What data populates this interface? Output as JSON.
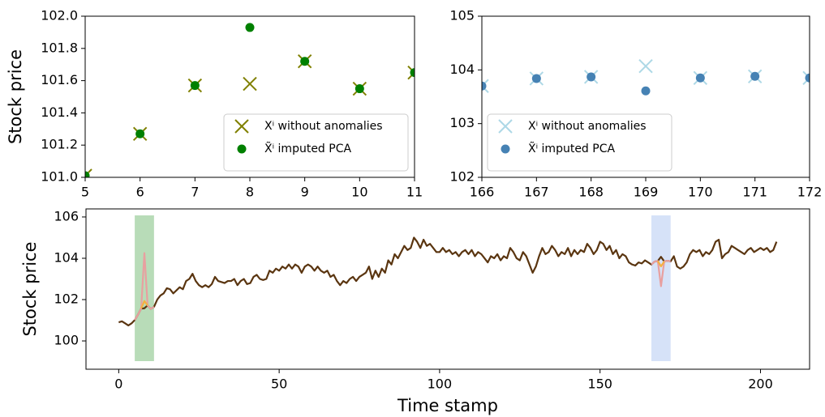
{
  "chart_data": [
    {
      "type": "scatter",
      "ylabel": "Stock price",
      "xlim": [
        5,
        11
      ],
      "ylim": [
        101.0,
        102.0
      ],
      "xticks": [
        5,
        6,
        7,
        8,
        9,
        10,
        11
      ],
      "yticks": [
        {
          "value": 101.0,
          "label": "101.0"
        },
        101.2,
        101.4,
        101.6,
        101.8,
        {
          "value": 102.0,
          "label": "102.0"
        }
      ],
      "legend": "lower right",
      "series": [
        {
          "name": "Xⁱ without anomalies",
          "marker": "x",
          "color": "#808000",
          "x": [
            5,
            6,
            7,
            8,
            9,
            10,
            11
          ],
          "values": [
            101.01,
            101.27,
            101.57,
            101.58,
            101.72,
            101.55,
            101.65
          ]
        },
        {
          "name": "X̃ⁱ imputed PCA",
          "marker": "o",
          "color": "#008000",
          "x": [
            5,
            6,
            7,
            8,
            9,
            10,
            11
          ],
          "values": [
            101.01,
            101.27,
            101.57,
            101.93,
            101.72,
            101.55,
            101.65
          ]
        }
      ]
    },
    {
      "type": "scatter",
      "xlim": [
        166,
        172
      ],
      "ylim": [
        102,
        105
      ],
      "xticks": [
        166,
        167,
        168,
        169,
        170,
        171,
        172
      ],
      "yticks": [
        102,
        103,
        104,
        105
      ],
      "legend": "lower left",
      "series": [
        {
          "name": "Xⁱ without anomalies",
          "marker": "x",
          "color": "#add8e6",
          "x": [
            166,
            167,
            168,
            169,
            170,
            171,
            172
          ],
          "values": [
            103.7,
            103.84,
            103.87,
            104.07,
            103.85,
            103.88,
            103.85
          ]
        },
        {
          "name": "X̃ⁱ imputed PCA",
          "marker": "o",
          "color": "#4682b4",
          "x": [
            166,
            167,
            168,
            169,
            170,
            171,
            172
          ],
          "values": [
            103.7,
            103.84,
            103.87,
            103.61,
            103.85,
            103.88,
            103.85
          ]
        }
      ]
    },
    {
      "type": "line",
      "xlabel": "Time stamp",
      "ylabel": "Stock price",
      "xlim": [
        -10.2,
        215.3
      ],
      "ylim": [
        98.63,
        106.39
      ],
      "xticks": [
        0,
        50,
        100,
        150,
        200
      ],
      "yticks": [
        100,
        102,
        104,
        106
      ],
      "shaded_ranges": [
        {
          "xlim": [
            5,
            11
          ],
          "color": "#b8dcb8"
        },
        {
          "xlim": [
            166,
            172
          ],
          "color": "#d6e2f8"
        }
      ],
      "series": [
        {
          "color": "#5a3510",
          "x": [
            0,
            1,
            2,
            3,
            4,
            5,
            6,
            7,
            8,
            9,
            10,
            11,
            12,
            13,
            14,
            15,
            16,
            17,
            18,
            19,
            20,
            21,
            22,
            23,
            24,
            25,
            26,
            27,
            28,
            29,
            30,
            31,
            32,
            33,
            34,
            35,
            36,
            37,
            38,
            39,
            40,
            41,
            42,
            43,
            44,
            45,
            46,
            47,
            48,
            49,
            50,
            51,
            52,
            53,
            54,
            55,
            56,
            57,
            58,
            59,
            60,
            61,
            62,
            63,
            64,
            65,
            66,
            67,
            68,
            69,
            70,
            71,
            72,
            73,
            74,
            75,
            76,
            77,
            78,
            79,
            80,
            81,
            82,
            83,
            84,
            85,
            86,
            87,
            88,
            89,
            90,
            91,
            92,
            93,
            94,
            95,
            96,
            97,
            98,
            99,
            100,
            101,
            102,
            103,
            104,
            105,
            106,
            107,
            108,
            109,
            110,
            111,
            112,
            113,
            114,
            115,
            116,
            117,
            118,
            119,
            120,
            121,
            122,
            123,
            124,
            125,
            126,
            127,
            128,
            129,
            130,
            131,
            132,
            133,
            134,
            135,
            136,
            137,
            138,
            139,
            140,
            141,
            142,
            143,
            144,
            145,
            146,
            147,
            148,
            149,
            150,
            151,
            152,
            153,
            154,
            155,
            156,
            157,
            158,
            159,
            160,
            161,
            162,
            163,
            164,
            165,
            166,
            167,
            168,
            169,
            170,
            171,
            172,
            173,
            174,
            175,
            176,
            177,
            178,
            179,
            180,
            181,
            182,
            183,
            184,
            185,
            186,
            187,
            188,
            189,
            190,
            191,
            192,
            193,
            194,
            195,
            196,
            197,
            198,
            199,
            200,
            201,
            202,
            203,
            204,
            205
          ],
          "values": [
            100.9,
            100.95,
            100.85,
            100.75,
            100.85,
            101.01,
            101.27,
            101.57,
            101.58,
            101.72,
            101.55,
            101.65,
            102.0,
            102.2,
            102.3,
            102.55,
            102.5,
            102.3,
            102.45,
            102.6,
            102.5,
            102.9,
            103.0,
            103.25,
            102.9,
            102.7,
            102.6,
            102.7,
            102.6,
            102.75,
            103.1,
            102.9,
            102.85,
            102.8,
            102.9,
            102.9,
            103.0,
            102.7,
            102.9,
            103.0,
            102.75,
            102.8,
            103.1,
            103.2,
            103.0,
            102.95,
            103.0,
            103.4,
            103.3,
            103.5,
            103.4,
            103.6,
            103.5,
            103.7,
            103.5,
            103.7,
            103.6,
            103.3,
            103.6,
            103.7,
            103.6,
            103.4,
            103.6,
            103.4,
            103.3,
            103.4,
            103.1,
            103.2,
            102.9,
            102.7,
            102.9,
            102.8,
            103.0,
            103.1,
            102.9,
            103.1,
            103.2,
            103.3,
            103.6,
            103.0,
            103.4,
            103.1,
            103.5,
            103.3,
            103.9,
            103.7,
            104.2,
            104.0,
            104.3,
            104.6,
            104.4,
            104.5,
            105.0,
            104.8,
            104.5,
            104.9,
            104.6,
            104.7,
            104.5,
            104.3,
            104.3,
            104.5,
            104.3,
            104.4,
            104.2,
            104.3,
            104.1,
            104.3,
            104.4,
            104.2,
            104.4,
            104.1,
            104.3,
            104.2,
            104.0,
            103.8,
            104.1,
            104.0,
            104.2,
            103.9,
            104.1,
            104.0,
            104.5,
            104.3,
            104.0,
            103.9,
            104.3,
            104.1,
            103.7,
            103.3,
            103.6,
            104.1,
            104.5,
            104.2,
            104.3,
            104.6,
            104.4,
            104.1,
            104.3,
            104.2,
            104.5,
            104.1,
            104.4,
            104.2,
            104.4,
            104.3,
            104.7,
            104.5,
            104.2,
            104.4,
            104.8,
            104.7,
            104.4,
            104.6,
            104.2,
            104.4,
            104.0,
            104.2,
            104.1,
            103.8,
            103.7,
            103.65,
            103.8,
            103.75,
            103.9,
            103.8,
            103.7,
            103.84,
            103.87,
            104.07,
            103.85,
            103.88,
            103.85,
            104.1,
            103.6,
            103.5,
            103.6,
            103.8,
            104.2,
            104.4,
            104.3,
            104.4,
            104.1,
            104.3,
            104.2,
            104.4,
            104.8,
            104.9,
            104.0,
            104.2,
            104.3,
            104.6,
            104.5,
            104.4,
            104.3,
            104.2,
            104.4,
            104.5,
            104.3,
            104.4,
            104.5,
            104.4,
            104.5,
            104.3,
            104.4,
            104.8
          ]
        },
        {
          "color": "#e8a0a0",
          "x": [
            5,
            6,
            7,
            8,
            9,
            10,
            11
          ],
          "values": [
            101.01,
            101.27,
            101.57,
            104.25,
            101.72,
            101.55,
            101.65
          ]
        },
        {
          "color": "#e8a0a0",
          "x": [
            166,
            167,
            168,
            169,
            170,
            171,
            172
          ],
          "values": [
            103.7,
            103.84,
            103.87,
            102.65,
            103.85,
            103.88,
            103.85
          ]
        },
        {
          "color": "#f5b041",
          "x": [
            7,
            8,
            9
          ],
          "values": [
            101.57,
            101.93,
            101.72
          ]
        },
        {
          "color": "#f5b041",
          "x": [
            168,
            169,
            170
          ],
          "values": [
            103.87,
            103.61,
            103.85
          ]
        }
      ]
    }
  ]
}
